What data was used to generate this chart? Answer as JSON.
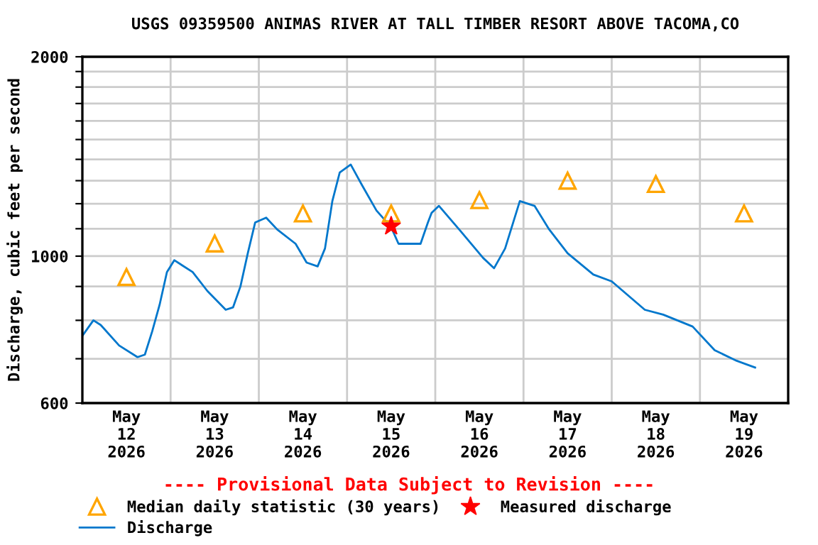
{
  "chart_data": {
    "type": "line",
    "title": "USGS 09359500 ANIMAS RIVER AT TALL TIMBER RESORT ABOVE TACOMA,CO",
    "ylabel": "Discharge, cubic feet per second",
    "log": "y",
    "ylim": [
      600,
      2000
    ],
    "yticks": [
      600,
      {
        "value": 700,
        "label": null
      },
      {
        "value": 800,
        "label": null
      },
      {
        "value": 900,
        "label": null
      },
      1000,
      {
        "value": 1100,
        "label": null
      },
      {
        "value": 1200,
        "label": null
      },
      {
        "value": 1300,
        "label": null
      },
      {
        "value": 1400,
        "label": null
      },
      {
        "value": 1500,
        "label": null
      },
      {
        "value": 1600,
        "label": null
      },
      {
        "value": 1700,
        "label": null
      },
      {
        "value": 1800,
        "label": null
      },
      {
        "value": 1900,
        "label": null
      },
      2000
    ],
    "xlim": [
      "2026-05-12T00:00",
      "2026-05-20T00:00"
    ],
    "xticks": [
      {
        "value": "2026-05-12T12:00",
        "label": "May\n12\n2026"
      },
      {
        "value": "2026-05-13T00:00",
        "label": null
      },
      {
        "value": "2026-05-13T12:00",
        "label": "May\n13\n2026"
      },
      {
        "value": "2026-05-14T00:00",
        "label": null
      },
      {
        "value": "2026-05-14T12:00",
        "label": "May\n14\n2026"
      },
      {
        "value": "2026-05-15T00:00",
        "label": null
      },
      {
        "value": "2026-05-15T12:00",
        "label": "May\n15\n2026"
      },
      {
        "value": "2026-05-16T00:00",
        "label": null
      },
      {
        "value": "2026-05-16T12:00",
        "label": "May\n16\n2026"
      },
      {
        "value": "2026-05-17T00:00",
        "label": null
      },
      {
        "value": "2026-05-17T12:00",
        "label": "May\n17\n2026"
      },
      {
        "value": "2026-05-18T00:00",
        "label": null
      },
      {
        "value": "2026-05-18T12:00",
        "label": "May\n18\n2026"
      },
      {
        "value": "2026-05-19T00:00",
        "label": null
      },
      {
        "value": "2026-05-19T12:00",
        "label": "May\n19\n2026"
      }
    ],
    "grid": true,
    "legend": "bottom",
    "annotations": [
      "---- Provisional Data Subject to Revision ----"
    ],
    "series": [
      {
        "name": "Median daily statistic (30 years)",
        "type": "scatter",
        "marker": "triangle",
        "color": "#ffa500",
        "x": [
          "2026-05-12T12:00",
          "2026-05-13T12:00",
          "2026-05-14T12:00",
          "2026-05-15T12:00",
          "2026-05-16T12:00",
          "2026-05-17T12:00",
          "2026-05-18T12:00",
          "2026-05-19T12:00"
        ],
        "values": [
          930,
          1045,
          1160,
          1160,
          1215,
          1300,
          1285,
          1160
        ]
      },
      {
        "name": "Discharge",
        "line_style": "solid",
        "color": "#0077cc",
        "x": [
          "2026-05-12T00:00",
          "2026-05-12T03:00",
          "2026-05-12T05:00",
          "2026-05-12T10:00",
          "2026-05-12T15:00",
          "2026-05-12T17:00",
          "2026-05-12T19:00",
          "2026-05-12T21:00",
          "2026-05-12T23:00",
          "2026-05-13T01:00",
          "2026-05-13T06:00",
          "2026-05-13T10:00",
          "2026-05-13T15:00",
          "2026-05-13T17:00",
          "2026-05-13T19:00",
          "2026-05-13T21:00",
          "2026-05-13T23:00",
          "2026-05-14T02:00",
          "2026-05-14T05:00",
          "2026-05-14T10:00",
          "2026-05-14T13:00",
          "2026-05-14T16:00",
          "2026-05-14T18:00",
          "2026-05-14T20:00",
          "2026-05-14T22:00",
          "2026-05-15T01:00",
          "2026-05-15T04:00",
          "2026-05-15T08:00",
          "2026-05-15T12:00",
          "2026-05-15T14:00",
          "2026-05-15T20:00",
          "2026-05-15T22:00",
          "2026-05-15T23:00",
          "2026-05-16T01:00",
          "2026-05-16T07:00",
          "2026-05-16T13:00",
          "2026-05-16T16:00",
          "2026-05-16T19:00",
          "2026-05-16T23:00",
          "2026-05-17T03:00",
          "2026-05-17T07:00",
          "2026-05-17T12:00",
          "2026-05-17T19:00",
          "2026-05-18T00:00",
          "2026-05-18T09:00",
          "2026-05-18T14:00",
          "2026-05-18T22:00",
          "2026-05-19T04:00",
          "2026-05-19T10:00",
          "2026-05-19T15:00"
        ],
        "values": [
          758,
          800,
          787,
          733,
          704,
          710,
          770,
          844,
          946,
          986,
          946,
          886,
          830,
          837,
          900,
          1010,
          1124,
          1143,
          1097,
          1044,
          978,
          965,
          1027,
          1211,
          1337,
          1375,
          1282,
          1172,
          1106,
          1044,
          1044,
          1124,
          1162,
          1191,
          1089,
          994,
          959,
          1027,
          1211,
          1191,
          1097,
          1010,
          938,
          916,
          830,
          816,
          783,
          721,
          695,
          679
        ]
      },
      {
        "name": "Measured discharge",
        "type": "scatter",
        "marker": "star",
        "color": "#ff0000",
        "x": [
          "2026-05-15T12:00"
        ],
        "values": [
          1110
        ]
      }
    ]
  }
}
